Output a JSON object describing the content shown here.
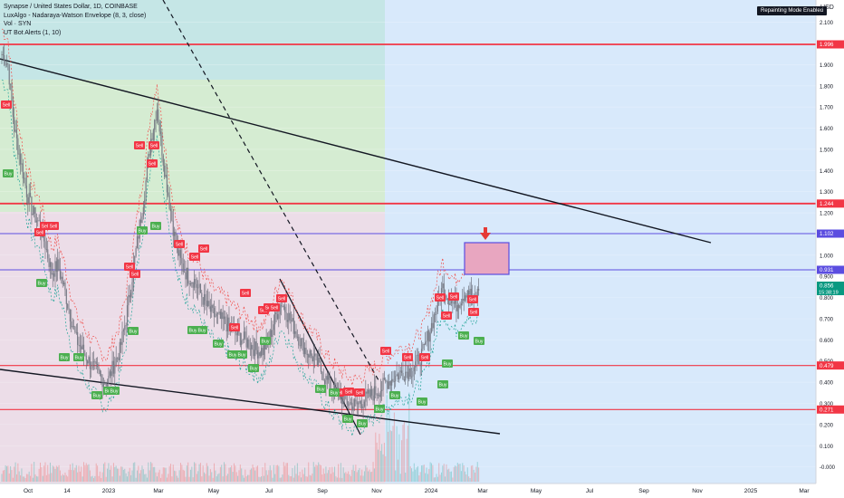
{
  "legend": {
    "symbol": "Synapse / United States Dollar, 1D, COINBASE",
    "ind1": "LuxAlgo - Nadaraya-Watson Envelope (8, 3, close)",
    "ind2": "Vol · SYN",
    "ind3": "UT Bot Alerts (1, 10)"
  },
  "repaint_badge": "Repainting Mode Enabled",
  "currency": "USD",
  "colors": {
    "up": "#26a69a",
    "down": "#ef5350",
    "red_line": "#f23645",
    "blue_line": "#5b4de0",
    "last_price": "#089981",
    "sell": "#f23645",
    "buy": "#4caf50"
  },
  "chart_data": {
    "type": "candlestick",
    "y_ticks": [
      "2.100",
      "2.000",
      "1.900",
      "1.800",
      "1.700",
      "1.600",
      "1.500",
      "1.400",
      "1.300",
      "1.200",
      "1.100",
      "1.000",
      "0.900",
      "0.800",
      "0.700",
      "0.600",
      "0.500",
      "0.400",
      "0.300",
      "0.200",
      "0.100",
      "-0.000"
    ],
    "x_ticks": [
      "Oct",
      "14",
      "2023",
      "Mar",
      "May",
      "Jul",
      "Sep",
      "Nov",
      "2024",
      "Mar",
      "May",
      "Jul",
      "Sep",
      "Nov",
      "2025",
      "Mar"
    ],
    "ylim": [
      -0.07,
      2.18
    ],
    "price_labels": [
      {
        "text": "1.996",
        "value": 1.996,
        "color": "#f23645"
      },
      {
        "text": "1.244",
        "value": 1.244,
        "color": "#f23645"
      },
      {
        "text": "1.102",
        "value": 1.102,
        "color": "#5b4de0"
      },
      {
        "text": "0.931",
        "value": 0.931,
        "color": "#5b4de0"
      },
      {
        "text": "0.856",
        "value": 0.856,
        "color": "#089981"
      },
      {
        "text": "0.479",
        "value": 0.479,
        "color": "#f23645"
      },
      {
        "text": "0.271",
        "value": 0.271,
        "color": "#f23645"
      }
    ],
    "countdown": "15:38:19",
    "horizontal_levels": [
      {
        "value": 1.996,
        "color": "#f23645"
      },
      {
        "value": 1.244,
        "color": "#f23645"
      },
      {
        "value": 1.102,
        "color": "#5b4de0"
      },
      {
        "value": 0.931,
        "color": "#5b4de0"
      },
      {
        "value": 0.479,
        "color": "#f23645"
      },
      {
        "value": 0.271,
        "color": "#f23645"
      }
    ],
    "close_series": [
      1.95,
      1.9,
      1.6,
      1.45,
      1.3,
      1.2,
      1.15,
      1.05,
      0.92,
      0.95,
      0.85,
      0.72,
      0.6,
      0.55,
      0.5,
      0.46,
      0.42,
      0.4,
      0.48,
      0.55,
      0.7,
      0.9,
      1.1,
      1.3,
      1.55,
      1.7,
      1.45,
      1.25,
      1.05,
      0.95,
      0.9,
      0.88,
      0.82,
      0.76,
      0.72,
      0.7,
      0.68,
      0.65,
      0.62,
      0.6,
      0.58,
      0.55,
      0.55,
      0.6,
      0.7,
      0.78,
      0.72,
      0.66,
      0.6,
      0.55,
      0.52,
      0.48,
      0.42,
      0.38,
      0.35,
      0.32,
      0.3,
      0.29,
      0.31,
      0.33,
      0.35,
      0.37,
      0.4,
      0.42,
      0.44,
      0.45,
      0.46,
      0.5,
      0.55,
      0.65,
      0.75,
      0.85,
      0.8,
      0.76,
      0.8,
      0.84,
      0.78,
      0.85
    ]
  }
}
